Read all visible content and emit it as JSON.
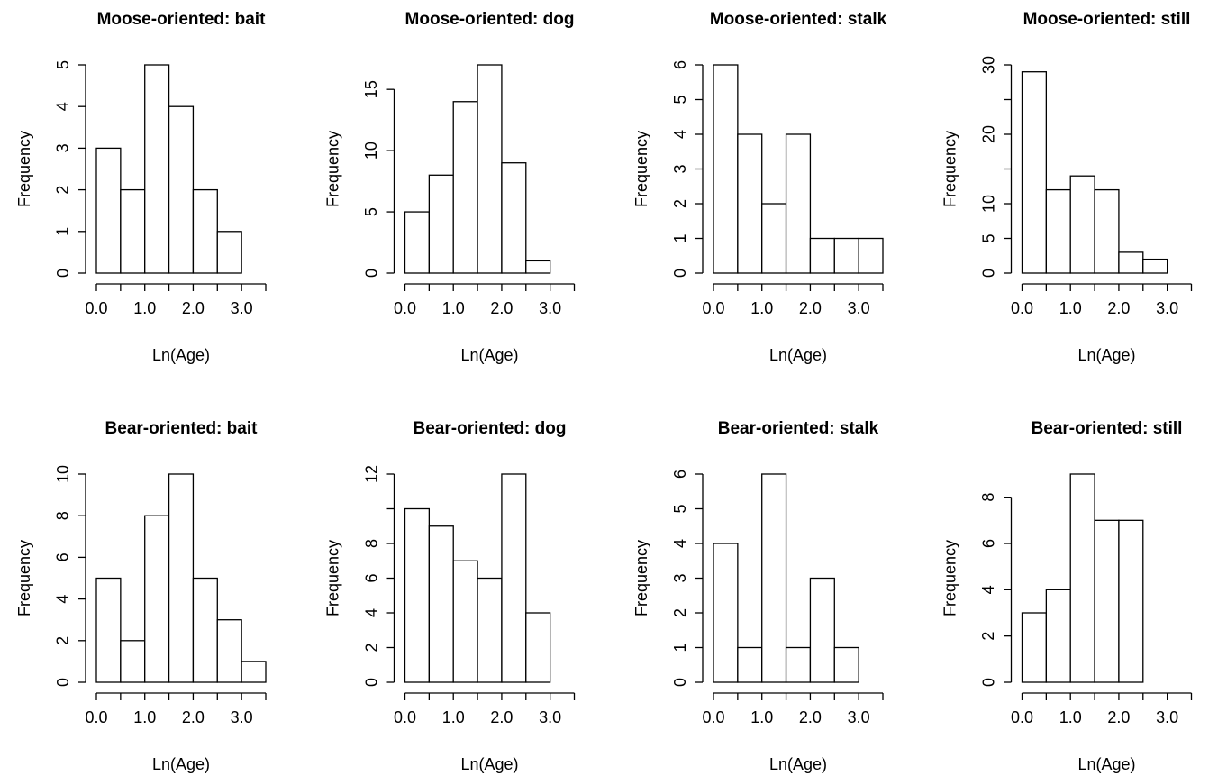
{
  "chart_data": [
    {
      "type": "histogram",
      "title": "Moose-oriented: bait",
      "xlabel": "Ln(Age)",
      "ylabel": "Frequency",
      "bins": [
        0,
        0.5,
        1,
        1.5,
        2,
        2.5,
        3
      ],
      "values": [
        3,
        2,
        5,
        4,
        2,
        1
      ],
      "xlim": [
        0,
        3.5
      ],
      "xticks": [
        {
          "value": 0,
          "label": "0.0"
        },
        {
          "value": 1,
          "label": "1.0"
        },
        {
          "value": 2,
          "label": "2.0"
        },
        {
          "value": 3,
          "label": "3.0"
        }
      ],
      "xminorticks": [
        0.5,
        1.5,
        2.5,
        3.5
      ],
      "ylim": [
        0,
        5
      ],
      "yticks": [
        0,
        1,
        2,
        3,
        4,
        5
      ]
    },
    {
      "type": "histogram",
      "title": "Moose-oriented: dog",
      "xlabel": "Ln(Age)",
      "ylabel": "Frequency",
      "bins": [
        0,
        0.5,
        1,
        1.5,
        2,
        2.5,
        3
      ],
      "values": [
        5,
        8,
        14,
        17,
        9,
        1
      ],
      "xlim": [
        0,
        3.5
      ],
      "xticks": [
        {
          "value": 0,
          "label": "0.0"
        },
        {
          "value": 1,
          "label": "1.0"
        },
        {
          "value": 2,
          "label": "2.0"
        },
        {
          "value": 3,
          "label": "3.0"
        }
      ],
      "xminorticks": [
        0.5,
        1.5,
        2.5,
        3.5
      ],
      "ylim": [
        0,
        17
      ],
      "yticks": [
        0,
        5,
        10,
        15
      ]
    },
    {
      "type": "histogram",
      "title": "Moose-oriented: stalk",
      "xlabel": "Ln(Age)",
      "ylabel": "Frequency",
      "bins": [
        0,
        0.5,
        1,
        1.5,
        2,
        2.5,
        3,
        3.5
      ],
      "values": [
        6,
        4,
        2,
        4,
        1,
        1,
        1
      ],
      "xlim": [
        0,
        3.5
      ],
      "xticks": [
        {
          "value": 0,
          "label": "0.0"
        },
        {
          "value": 1,
          "label": "1.0"
        },
        {
          "value": 2,
          "label": "2.0"
        },
        {
          "value": 3,
          "label": "3.0"
        }
      ],
      "xminorticks": [
        0.5,
        1.5,
        2.5,
        3.5
      ],
      "ylim": [
        0,
        6
      ],
      "yticks": [
        0,
        1,
        2,
        3,
        4,
        5,
        6
      ]
    },
    {
      "type": "histogram",
      "title": "Moose-oriented: still",
      "xlabel": "Ln(Age)",
      "ylabel": "Frequency",
      "bins": [
        0,
        0.5,
        1,
        1.5,
        2,
        2.5,
        3
      ],
      "values": [
        29,
        12,
        14,
        12,
        3,
        2
      ],
      "xlim": [
        0,
        3.5
      ],
      "xticks": [
        {
          "value": 0,
          "label": "0.0"
        },
        {
          "value": 1,
          "label": "1.0"
        },
        {
          "value": 2,
          "label": "2.0"
        },
        {
          "value": 3,
          "label": "3.0"
        }
      ],
      "xminorticks": [
        0.5,
        1.5,
        2.5,
        3.5
      ],
      "ylim": [
        0,
        30
      ],
      "yticks": [
        0,
        5,
        10,
        20,
        30
      ],
      "yminorticks": [
        15,
        25
      ]
    },
    {
      "type": "histogram",
      "title": "Bear-oriented: bait",
      "xlabel": "Ln(Age)",
      "ylabel": "Frequency",
      "bins": [
        0,
        0.5,
        1,
        1.5,
        2,
        2.5,
        3,
        3.5
      ],
      "values": [
        5,
        2,
        8,
        10,
        5,
        3,
        1
      ],
      "xlim": [
        0,
        3.5
      ],
      "xticks": [
        {
          "value": 0,
          "label": "0.0"
        },
        {
          "value": 1,
          "label": "1.0"
        },
        {
          "value": 2,
          "label": "2.0"
        },
        {
          "value": 3,
          "label": "3.0"
        }
      ],
      "xminorticks": [
        0.5,
        1.5,
        2.5,
        3.5
      ],
      "ylim": [
        0,
        10
      ],
      "yticks": [
        0,
        2,
        4,
        6,
        8,
        10
      ]
    },
    {
      "type": "histogram",
      "title": "Bear-oriented: dog",
      "xlabel": "Ln(Age)",
      "ylabel": "Frequency",
      "bins": [
        0,
        0.5,
        1,
        1.5,
        2,
        2.5,
        3
      ],
      "values": [
        10,
        9,
        7,
        6,
        12,
        4
      ],
      "xlim": [
        0,
        3.5
      ],
      "xticks": [
        {
          "value": 0,
          "label": "0.0"
        },
        {
          "value": 1,
          "label": "1.0"
        },
        {
          "value": 2,
          "label": "2.0"
        },
        {
          "value": 3,
          "label": "3.0"
        }
      ],
      "xminorticks": [
        0.5,
        1.5,
        2.5,
        3.5
      ],
      "ylim": [
        0,
        12
      ],
      "yticks": [
        0,
        2,
        4,
        6,
        8,
        12
      ],
      "yminorticks": [
        10
      ]
    },
    {
      "type": "histogram",
      "title": "Bear-oriented: stalk",
      "xlabel": "Ln(Age)",
      "ylabel": "Frequency",
      "bins": [
        0,
        0.5,
        1,
        1.5,
        2,
        2.5,
        3
      ],
      "values": [
        4,
        1,
        6,
        1,
        3,
        1
      ],
      "xlim": [
        0,
        3.5
      ],
      "xticks": [
        {
          "value": 0,
          "label": "0.0"
        },
        {
          "value": 1,
          "label": "1.0"
        },
        {
          "value": 2,
          "label": "2.0"
        },
        {
          "value": 3,
          "label": "3.0"
        }
      ],
      "xminorticks": [
        0.5,
        1.5,
        2.5,
        3.5
      ],
      "ylim": [
        0,
        6
      ],
      "yticks": [
        0,
        1,
        2,
        3,
        4,
        5,
        6
      ]
    },
    {
      "type": "histogram",
      "title": "Bear-oriented: still",
      "xlabel": "Ln(Age)",
      "ylabel": "Frequency",
      "bins": [
        0,
        0.5,
        1,
        1.5,
        2,
        2.5
      ],
      "values": [
        3,
        4,
        9,
        7,
        7
      ],
      "xlim": [
        0,
        3.5
      ],
      "xticks": [
        {
          "value": 0,
          "label": "0.0"
        },
        {
          "value": 1,
          "label": "1.0"
        },
        {
          "value": 2,
          "label": "2.0"
        },
        {
          "value": 3,
          "label": "3.0"
        }
      ],
      "xminorticks": [
        0.5,
        1.5,
        2.5,
        3.5
      ],
      "ylim": [
        0,
        9
      ],
      "yticks": [
        0,
        2,
        4,
        6,
        8
      ]
    }
  ]
}
